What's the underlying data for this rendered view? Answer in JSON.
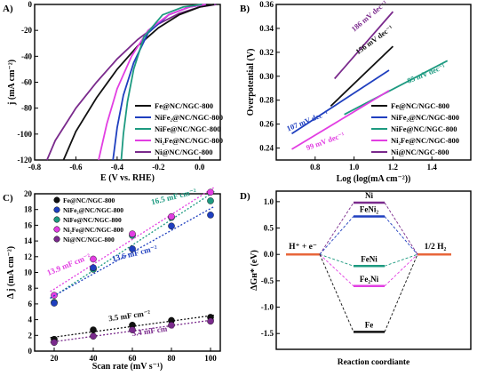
{
  "colors": {
    "black": "#111111",
    "blue": "#1f3fbf",
    "teal": "#1d9a80",
    "magenta": "#e23ee2",
    "purple": "#7a2a8c",
    "orange": "#e8663a"
  },
  "chart_data": [
    {
      "panel_label": "A)",
      "type": "line",
      "xlabel": "E (V vs. RHE)",
      "ylabel": "j (mA cm⁻²)",
      "xlim": [
        -0.8,
        0.1
      ],
      "ylim": [
        -120,
        0
      ],
      "xticks": [
        -0.8,
        -0.6,
        -0.4,
        -0.2,
        0.0
      ],
      "xtick_labels": [
        "-0.8",
        "-0.6",
        "-0.4",
        "-0.2",
        "0.0"
      ],
      "yticks": [
        0,
        -20,
        -40,
        -60,
        -80,
        -100,
        -120
      ],
      "ytick_labels": [
        "0",
        "-20",
        "-40",
        "-60",
        "-80",
        "-100",
        "-120"
      ],
      "legend": [
        {
          "label": "Fe@NC/NGC-800",
          "color": "#111111"
        },
        {
          "label": "NiFe₂@NC/NGC-800",
          "color": "#1f3fbf"
        },
        {
          "label": "NiFe@NC/NGC-800",
          "color": "#1d9a80"
        },
        {
          "label": "Ni₂Fe@NC/NGC-800",
          "color": "#e23ee2"
        },
        {
          "label": "Ni@NC/NGC-800",
          "color": "#7a2a8c"
        }
      ],
      "series": [
        {
          "color": "#7a2a8c",
          "x": [
            0.08,
            0.0,
            -0.1,
            -0.2,
            -0.3,
            -0.4,
            -0.5,
            -0.6,
            -0.7,
            -0.74
          ],
          "y": [
            0,
            -2,
            -7,
            -15,
            -27,
            -42,
            -60,
            -80,
            -105,
            -120
          ]
        },
        {
          "color": "#111111",
          "x": [
            0.07,
            0.0,
            -0.1,
            -0.2,
            -0.3,
            -0.4,
            -0.5,
            -0.6,
            -0.66
          ],
          "y": [
            0,
            -2,
            -8,
            -18,
            -32,
            -50,
            -72,
            -98,
            -120
          ]
        },
        {
          "color": "#1f3fbf",
          "x": [
            0.03,
            -0.05,
            -0.15,
            -0.25,
            -0.32,
            -0.37,
            -0.4,
            -0.42
          ],
          "y": [
            0,
            -2,
            -8,
            -22,
            -45,
            -70,
            -95,
            -120
          ]
        },
        {
          "color": "#e23ee2",
          "x": [
            0.03,
            -0.05,
            -0.15,
            -0.25,
            -0.33,
            -0.4,
            -0.45,
            -0.49
          ],
          "y": [
            0,
            -2,
            -8,
            -20,
            -40,
            -65,
            -92,
            -120
          ]
        },
        {
          "color": "#1d9a80",
          "x": [
            0.01,
            -0.08,
            -0.18,
            -0.27,
            -0.32,
            -0.35,
            -0.37,
            -0.38
          ],
          "y": [
            0,
            -2,
            -8,
            -25,
            -50,
            -75,
            -100,
            -120
          ]
        }
      ]
    },
    {
      "panel_label": "B)",
      "type": "line",
      "xlabel": "Log (log(mA cm⁻²))",
      "ylabel": "Overpotential (V)",
      "xlim": [
        0.6,
        1.6
      ],
      "ylim": [
        0.23,
        0.36
      ],
      "xticks": [
        0.8,
        1.0,
        1.2,
        1.4
      ],
      "xtick_labels": [
        "0.8",
        "1.0",
        "1.2",
        "1.4"
      ],
      "yticks": [
        0.24,
        0.26,
        0.28,
        0.3,
        0.32,
        0.34,
        0.36
      ],
      "ytick_labels": [
        "0.24",
        "0.26",
        "0.28",
        "0.30",
        "0.32",
        "0.34",
        "0.36"
      ],
      "legend": [
        {
          "label": "Fe@NC/NGC-800",
          "color": "#111111"
        },
        {
          "label": "NiFe₂@NC/NGC-800",
          "color": "#1f3fbf"
        },
        {
          "label": "NiFe@NC/NGC-800",
          "color": "#1d9a80"
        },
        {
          "label": "Ni₂Fe@NC/NGC-800",
          "color": "#e23ee2"
        },
        {
          "label": "Ni@NC/NGC-800",
          "color": "#7a2a8c"
        }
      ],
      "annotations": [
        {
          "text": "186 mV dec⁻¹",
          "color": "#7a2a8c",
          "x": 1.0,
          "y": 0.337,
          "rotate": -40
        },
        {
          "text": "156 mV dec⁻¹",
          "color": "#111111",
          "x": 1.02,
          "y": 0.318,
          "rotate": -36
        },
        {
          "text": "85 mV dec⁻¹",
          "color": "#1d9a80",
          "x": 1.28,
          "y": 0.294,
          "rotate": -22
        },
        {
          "text": "107 mV dec⁻¹",
          "color": "#1f3fbf",
          "x": 0.66,
          "y": 0.254,
          "rotate": -22
        },
        {
          "text": "99 mV dec⁻¹",
          "color": "#e23ee2",
          "x": 0.76,
          "y": 0.238,
          "rotate": -20
        }
      ],
      "series": [
        {
          "color": "#7a2a8c",
          "x": [
            0.9,
            1.2
          ],
          "y": [
            0.298,
            0.354
          ]
        },
        {
          "color": "#111111",
          "x": [
            0.88,
            1.2
          ],
          "y": [
            0.275,
            0.325
          ]
        },
        {
          "color": "#1d9a80",
          "x": [
            0.95,
            1.48
          ],
          "y": [
            0.268,
            0.313
          ]
        },
        {
          "color": "#1f3fbf",
          "x": [
            0.68,
            1.18
          ],
          "y": [
            0.252,
            0.305
          ]
        },
        {
          "color": "#e23ee2",
          "x": [
            0.68,
            1.18
          ],
          "y": [
            0.239,
            0.288
          ]
        }
      ]
    },
    {
      "panel_label": "C)",
      "type": "scatter",
      "xlabel": "Scan rate (mV s⁻¹)",
      "ylabel": "Δ j (mA cm⁻²)",
      "xlim": [
        10,
        105
      ],
      "ylim": [
        0,
        20
      ],
      "xticks": [
        20,
        40,
        60,
        80,
        100
      ],
      "xtick_labels": [
        "20",
        "40",
        "60",
        "80",
        "100"
      ],
      "yticks": [
        0,
        2,
        4,
        6,
        8,
        10,
        12,
        14,
        16,
        18,
        20
      ],
      "ytick_labels": [
        "0",
        "2",
        "4",
        "6",
        "8",
        "10",
        "12",
        "14",
        "16",
        "18",
        "20"
      ],
      "legend": [
        {
          "label": "Fe@NC/NGC-800",
          "color": "#111111"
        },
        {
          "label": "NiFe₂@NC/NGC-800",
          "color": "#1f3fbf"
        },
        {
          "label": "NiFe@NC/NGC-800",
          "color": "#1d9a80"
        },
        {
          "label": "Ni₂Fe@NC/NGC-800",
          "color": "#e23ee2"
        },
        {
          "label": "Ni@NC/NGC-800",
          "color": "#7a2a8c"
        }
      ],
      "annotations": [
        {
          "text": "16.5 mF cm⁻²",
          "color": "#1d9a80",
          "x": 70,
          "y": 18.6,
          "rotate": -14
        },
        {
          "text": "13.9 mF cm⁻²",
          "color": "#e23ee2",
          "x": 17,
          "y": 9.6,
          "rotate": -22
        },
        {
          "text": "13.6 mF cm⁻²",
          "color": "#1f3fbf",
          "x": 50,
          "y": 11.4,
          "rotate": -14
        },
        {
          "text": "3.5 mF cm⁻²",
          "color": "#111111",
          "x": 48,
          "y": 3.8,
          "rotate": -8
        },
        {
          "text": "3.4 mF cm⁻²",
          "color": "#7a2a8c",
          "x": 60,
          "y": 1.9,
          "rotate": -8
        }
      ],
      "x": [
        20,
        40,
        60,
        80,
        100
      ],
      "series": [
        {
          "color": "#1d9a80",
          "values": [
            6.2,
            10.4,
            14.7,
            17.0,
            19.1
          ]
        },
        {
          "color": "#e23ee2",
          "values": [
            7.1,
            11.7,
            14.9,
            17.1,
            20.2
          ]
        },
        {
          "color": "#1f3fbf",
          "values": [
            6.1,
            10.6,
            13.0,
            15.9,
            17.3
          ]
        },
        {
          "color": "#111111",
          "values": [
            1.5,
            2.7,
            3.3,
            3.9,
            4.3
          ]
        },
        {
          "color": "#7a2a8c",
          "values": [
            1.1,
            1.9,
            2.7,
            3.3,
            3.8
          ]
        }
      ]
    },
    {
      "panel_label": "D)",
      "type": "line",
      "xlabel": "Reaction coordiante",
      "ylabel": "ΔGʜ* (eV)",
      "ylim": [
        -1.8,
        1.2
      ],
      "yticks": [
        1.0,
        0.5,
        0.0,
        -0.5,
        -1.0,
        -1.5
      ],
      "ytick_labels": [
        "1.0",
        "0.5",
        "0.0",
        "-0.5",
        "-1.0",
        "-1.5"
      ],
      "states": {
        "left_label": "H⁺ + e⁻",
        "right_label": "1/2 H₂",
        "level_color": "#e8663a",
        "level_value": 0.0
      },
      "levels": [
        {
          "label": "Ni",
          "value": 0.98,
          "color": "#7a2a8c"
        },
        {
          "label": "FeNi₂",
          "value": 0.72,
          "color": "#1f3fbf"
        },
        {
          "label": "FeNi",
          "value": -0.22,
          "color": "#1d9a80"
        },
        {
          "label": "Fe₂Ni",
          "value": -0.6,
          "color": "#e23ee2"
        },
        {
          "label": "Fe",
          "value": -1.47,
          "color": "#111111"
        }
      ]
    }
  ]
}
